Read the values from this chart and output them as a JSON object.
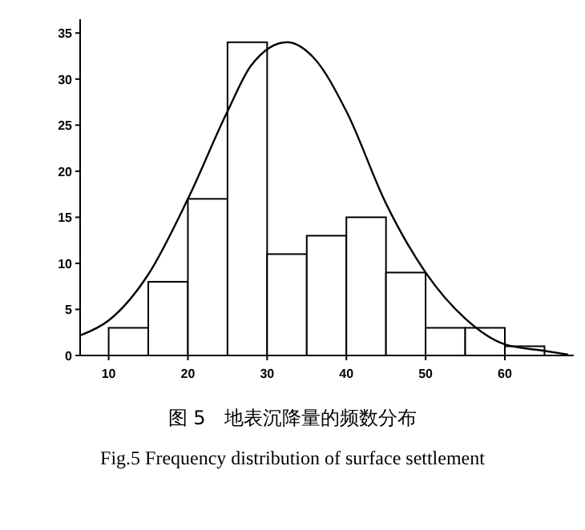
{
  "chart_data": {
    "type": "histogram",
    "bins": [
      10,
      15,
      20,
      25,
      30,
      35,
      40,
      45,
      50,
      55,
      60,
      65
    ],
    "values": [
      3,
      8,
      17,
      34,
      11,
      13,
      15,
      9,
      3,
      3,
      1
    ],
    "color": "#ffffff",
    "series": [
      {
        "type": "line",
        "color": "#000000",
        "x": [
          6.5,
          10,
          15,
          20,
          25,
          28,
          32.5,
          36,
          40,
          45,
          50,
          55,
          60,
          65,
          68
        ],
        "values": [
          2.2,
          3.8,
          8.8,
          17,
          26.5,
          31.5,
          34,
          32.2,
          26.5,
          16.5,
          9,
          4,
          1.2,
          0.5,
          0.1
        ]
      }
    ],
    "xlim": [
      6.4,
      68.7
    ],
    "ylim": [
      0,
      36.5
    ],
    "xticks": [
      10,
      20,
      30,
      40,
      50,
      60
    ],
    "yticks": [
      0,
      5,
      10,
      15,
      20,
      25,
      30,
      35
    ],
    "grid": false,
    "annotations": [
      "图 5　地表沉降量的频数分布",
      "Fig.5 Frequency distribution of surface settlement"
    ]
  }
}
